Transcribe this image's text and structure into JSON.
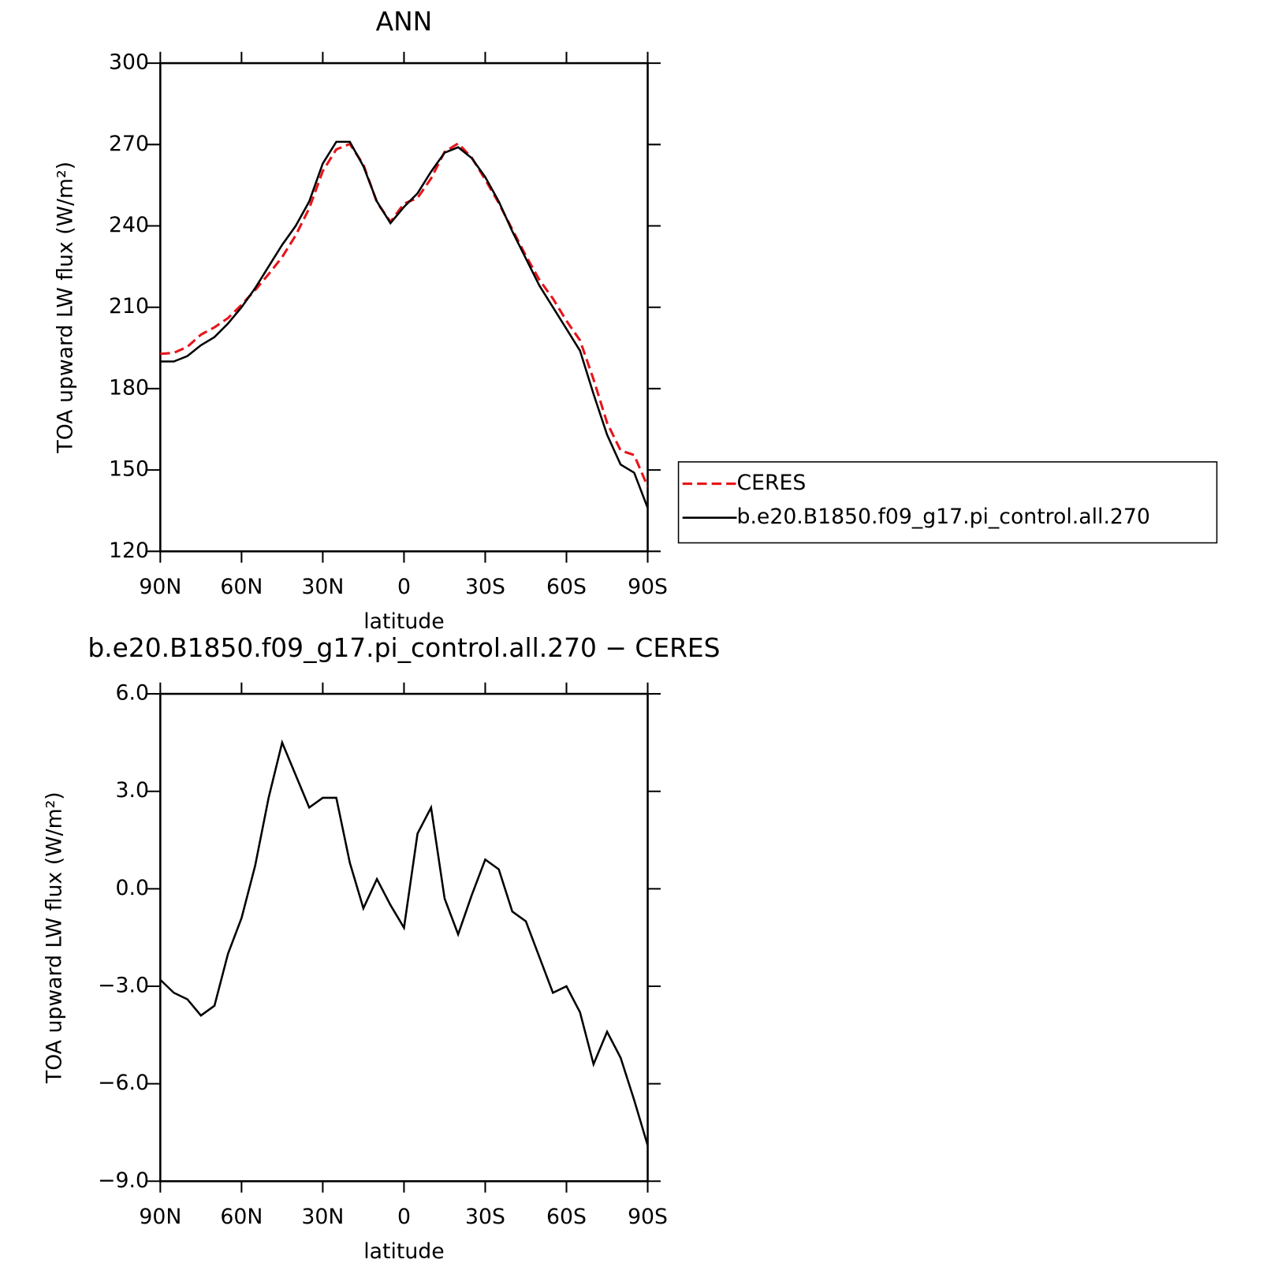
{
  "chart_data": [
    {
      "type": "line",
      "title": "ANN",
      "xlabel": "latitude",
      "ylabel": "TOA upward LW flux (W/m²)",
      "x": [
        90,
        85,
        80,
        75,
        70,
        65,
        60,
        55,
        50,
        45,
        40,
        35,
        30,
        25,
        20,
        15,
        10,
        5,
        0,
        -5,
        -10,
        -15,
        -20,
        -25,
        -30,
        -35,
        -40,
        -45,
        -50,
        -55,
        -60,
        -65,
        -70,
        -75,
        -80,
        -85,
        -90
      ],
      "xlim": [
        90,
        -90
      ],
      "xticks": [
        {
          "value": 90,
          "label": "90N"
        },
        {
          "value": 60,
          "label": "60N"
        },
        {
          "value": 30,
          "label": "30N"
        },
        0,
        {
          "value": -30,
          "label": "30S"
        },
        {
          "value": -60,
          "label": "60S"
        },
        {
          "value": -90,
          "label": "90S"
        }
      ],
      "ylim": [
        120,
        300
      ],
      "yticks": [
        120,
        150,
        180,
        210,
        240,
        270,
        300
      ],
      "legend": "right",
      "series": [
        {
          "name": "CERES",
          "color": "#e8141a",
          "dashed": true,
          "values": [
            192.8,
            193.2,
            195.4,
            199.9,
            202.6,
            206,
            210.9,
            216.3,
            222.2,
            228.5,
            236.5,
            246.5,
            260.2,
            268.2,
            270.2,
            262.6,
            248.7,
            241.5,
            248.2,
            250.3,
            257.5,
            267.3,
            270.4,
            265.2,
            257.1,
            248.4,
            238.7,
            229,
            220.1,
            213.2,
            205,
            197.8,
            183.4,
            167.4,
            157.2,
            155.5,
            143.9
          ]
        },
        {
          "name": "b.e20.B1850.f09_g17.pi_control.all.270",
          "color": "#000000",
          "dashed": false,
          "values": [
            190,
            190,
            192,
            196,
            199,
            204,
            210,
            217,
            225,
            233,
            240,
            249,
            263,
            271,
            271,
            262,
            249,
            241,
            247,
            252,
            260,
            267,
            269,
            265,
            258,
            249,
            238,
            228,
            218,
            210,
            202,
            194,
            178,
            163,
            152,
            149,
            136
          ]
        }
      ]
    },
    {
      "type": "line",
      "title": "b.e20.B1850.f09_g17.pi_control.all.270 − CERES",
      "xlabel": "latitude",
      "ylabel": "TOA upward LW flux (W/m²)",
      "x": [
        90,
        85,
        80,
        75,
        70,
        65,
        60,
        55,
        50,
        45,
        40,
        35,
        30,
        25,
        20,
        15,
        10,
        5,
        0,
        -5,
        -10,
        -15,
        -20,
        -25,
        -30,
        -35,
        -40,
        -45,
        -50,
        -55,
        -60,
        -65,
        -70,
        -75,
        -80,
        -85,
        -90
      ],
      "xlim": [
        90,
        -90
      ],
      "xticks": [
        {
          "value": 90,
          "label": "90N"
        },
        {
          "value": 60,
          "label": "60N"
        },
        {
          "value": 30,
          "label": "30N"
        },
        0,
        {
          "value": -30,
          "label": "30S"
        },
        {
          "value": -60,
          "label": "60S"
        },
        {
          "value": -90,
          "label": "90S"
        }
      ],
      "ylim": [
        -9,
        6
      ],
      "yticks": [
        {
          "value": -9,
          "label": "−9.0"
        },
        {
          "value": -6,
          "label": "−6.0"
        },
        {
          "value": -3,
          "label": "−3.0"
        },
        {
          "value": 0,
          "label": "0.0"
        },
        {
          "value": 3,
          "label": "3.0"
        },
        {
          "value": 6,
          "label": "6.0"
        }
      ],
      "color": "#000000",
      "values": [
        -2.8,
        -3.2,
        -3.4,
        -3.9,
        -3.6,
        -2.0,
        -0.9,
        0.7,
        2.8,
        4.5,
        3.5,
        2.5,
        2.8,
        2.8,
        0.8,
        -0.6,
        0.3,
        -0.5,
        -1.2,
        1.7,
        2.5,
        -0.3,
        -1.4,
        -0.2,
        0.9,
        0.6,
        -0.7,
        -1.0,
        -2.1,
        -3.2,
        -3.0,
        -3.8,
        -5.4,
        -4.4,
        -5.2,
        -6.5,
        -7.9
      ]
    }
  ]
}
